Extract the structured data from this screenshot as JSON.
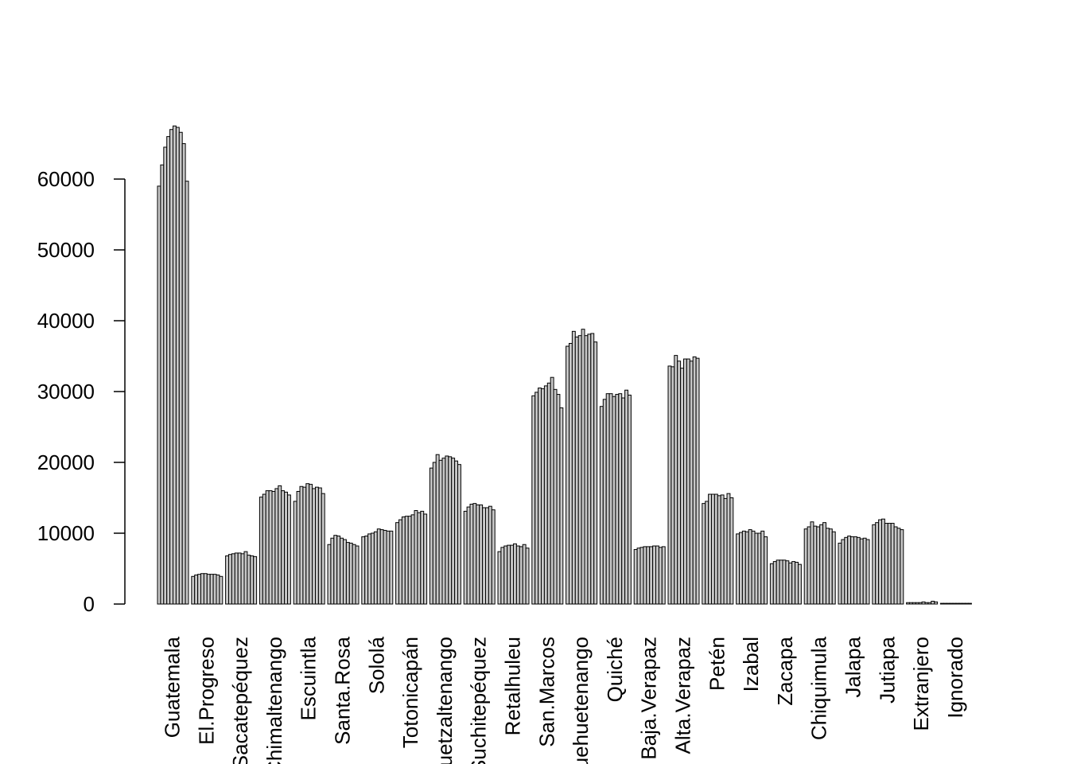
{
  "chart_data": {
    "type": "bar",
    "title": "",
    "xlabel": "",
    "ylabel": "",
    "ylim": [
      0,
      70000
    ],
    "yticks": [
      0,
      10000,
      20000,
      30000,
      40000,
      50000,
      60000
    ],
    "ytick_labels": [
      "0",
      "10000",
      "20000",
      "30000",
      "40000",
      "50000",
      "60000"
    ],
    "grid": false,
    "legend": "none",
    "bar_fill": "#c8c8c8",
    "bar_edge": "#000000",
    "categories": [
      "Guatemala",
      "El.Progreso",
      "Sacatepéquez",
      "Chimaltenango",
      "Escuintla",
      "Santa.Rosa",
      "Sololá",
      "Totonicapán",
      "Quetzaltenango",
      "Suchitepéquez",
      "Retalhuleu",
      "San.Marcos",
      "Huehuetenango",
      "Quiché",
      "Baja.Verapaz",
      "Alta.Verapaz",
      "Petén",
      "Izabal",
      "Zacapa",
      "Chiquimula",
      "Jalapa",
      "Jutiapa",
      "Extranjero",
      "Ignorado"
    ],
    "values": [
      [
        59000,
        62000,
        64500,
        66000,
        67000,
        67500,
        67300,
        66600,
        65000,
        59700
      ],
      [
        3900,
        4100,
        4200,
        4300,
        4300,
        4200,
        4200,
        4200,
        4100,
        3900
      ],
      [
        6800,
        7000,
        7100,
        7200,
        7200,
        7100,
        7400,
        6900,
        6800,
        6700
      ],
      [
        15100,
        15500,
        16000,
        16000,
        15900,
        16300,
        16700,
        16000,
        15800,
        15400
      ],
      [
        14500,
        15900,
        16600,
        16500,
        17000,
        16900,
        16300,
        16500,
        16400,
        15600
      ],
      [
        8400,
        9300,
        9700,
        9600,
        9300,
        9100,
        8700,
        8600,
        8400,
        8200
      ],
      [
        9500,
        9600,
        9900,
        10000,
        10200,
        10600,
        10500,
        10400,
        10300,
        10300
      ],
      [
        11500,
        11900,
        12300,
        12400,
        12400,
        12600,
        13200,
        12900,
        13100,
        12700
      ],
      [
        19200,
        20000,
        21100,
        20300,
        20600,
        20900,
        20800,
        20600,
        20200,
        19700
      ],
      [
        13100,
        13700,
        14100,
        14200,
        14000,
        14000,
        13600,
        13600,
        13800,
        13300
      ],
      [
        7400,
        8000,
        8200,
        8300,
        8300,
        8500,
        8200,
        8100,
        8400,
        7900
      ],
      [
        29400,
        29900,
        30500,
        30400,
        30800,
        31200,
        32000,
        30300,
        29600,
        27700
      ],
      [
        36400,
        36800,
        38500,
        37700,
        37900,
        38800,
        37900,
        38100,
        38200,
        37000
      ],
      [
        27900,
        28900,
        29700,
        29700,
        29300,
        29600,
        29700,
        29100,
        30200,
        29500
      ],
      [
        7700,
        7900,
        8000,
        8100,
        8100,
        8100,
        8200,
        8200,
        8000,
        8100
      ],
      [
        33600,
        33500,
        35100,
        34300,
        33300,
        34600,
        34600,
        34300,
        34900,
        34700
      ],
      [
        14200,
        14500,
        15500,
        15500,
        15500,
        15300,
        15400,
        14900,
        15600,
        15000
      ],
      [
        9900,
        10100,
        10300,
        10200,
        10500,
        10300,
        10000,
        10000,
        10300,
        9500
      ],
      [
        5700,
        6000,
        6200,
        6200,
        6200,
        6100,
        5800,
        6000,
        5900,
        5600
      ],
      [
        10600,
        10900,
        11600,
        11000,
        10900,
        11200,
        11500,
        10700,
        10600,
        10200
      ],
      [
        8600,
        9100,
        9400,
        9600,
        9500,
        9500,
        9400,
        9200,
        9300,
        9100
      ],
      [
        11200,
        11500,
        11900,
        12000,
        11400,
        11400,
        11400,
        10900,
        10700,
        10500
      ],
      [
        200,
        200,
        200,
        200,
        200,
        300,
        200,
        200,
        400,
        300
      ],
      [
        100,
        100,
        100,
        100,
        100,
        100,
        100,
        100,
        100,
        100
      ]
    ]
  }
}
